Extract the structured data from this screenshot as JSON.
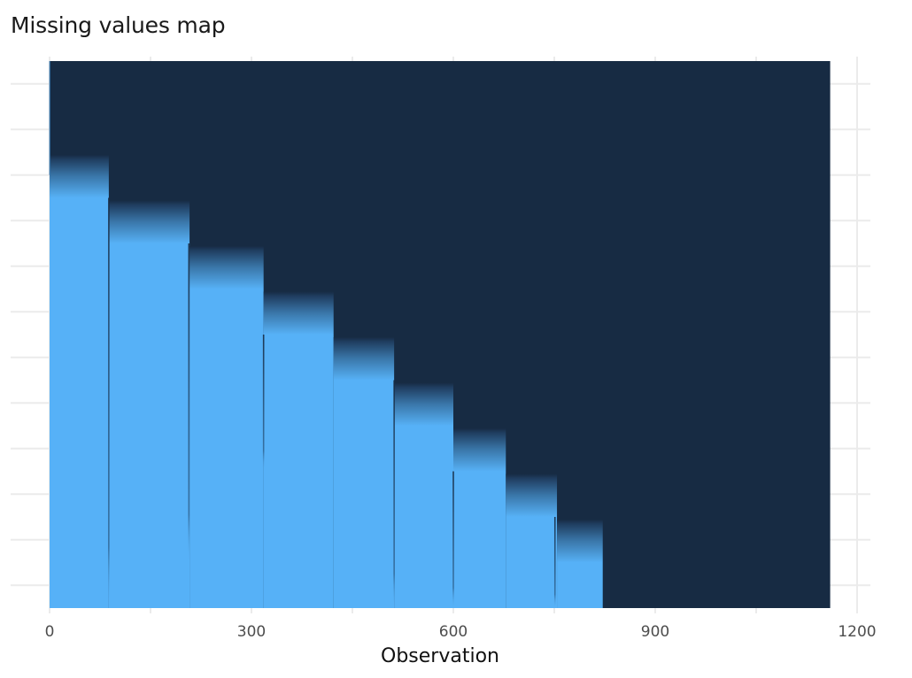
{
  "chart_data": {
    "type": "heatmap",
    "title": "Missing values map",
    "xlabel": "Observation",
    "ylabel": "",
    "xlim": [
      0,
      1200
    ],
    "x_ticks": [
      0,
      300,
      600,
      900,
      1200
    ],
    "x_minor_ticks": [
      150,
      450,
      750,
      1050
    ],
    "n_observations": 1160,
    "n_variables": 12,
    "y_tick_labels_visible": false,
    "grid": true,
    "legend": "none",
    "colors": {
      "present": "#172B43",
      "missing": "#56B1F7"
    },
    "value_meaning": "dark = observed, light blue = missing; rows are variables (top = row 1)",
    "segments": [
      {
        "x_start": 0,
        "x_end": 88,
        "first_missing_row": 4,
        "gradient_row": 3
      },
      {
        "x_start": 88,
        "x_end": 208,
        "first_missing_row": 5,
        "gradient_row": 4
      },
      {
        "x_start": 208,
        "x_end": 318,
        "first_missing_row": 6,
        "gradient_row": 5
      },
      {
        "x_start": 318,
        "x_end": 422,
        "first_missing_row": 7,
        "gradient_row": 6
      },
      {
        "x_start": 422,
        "x_end": 512,
        "first_missing_row": 8,
        "gradient_row": 7
      },
      {
        "x_start": 512,
        "x_end": 600,
        "first_missing_row": 9,
        "gradient_row": 8
      },
      {
        "x_start": 600,
        "x_end": 678,
        "first_missing_row": 10,
        "gradient_row": 9
      },
      {
        "x_start": 678,
        "x_end": 754,
        "first_missing_row": 11,
        "gradient_row": 10
      },
      {
        "x_start": 754,
        "x_end": 822,
        "first_missing_row": 12,
        "gradient_row": 11
      },
      {
        "x_start": 822,
        "x_end": 1160,
        "first_missing_row": null,
        "gradient_row": null
      }
    ],
    "observed_column_lines": [
      {
        "x": 88,
        "from_row": 4,
        "to_row": 12
      },
      {
        "x": 207,
        "from_row": 5,
        "to_row": 11
      },
      {
        "x": 318,
        "from_row": 7,
        "to_row": 9
      },
      {
        "x": 512,
        "from_row": 8,
        "to_row": 12
      },
      {
        "x": 600,
        "from_row": 10,
        "to_row": 12
      },
      {
        "x": 751,
        "from_row": 11,
        "to_row": 12
      }
    ]
  }
}
